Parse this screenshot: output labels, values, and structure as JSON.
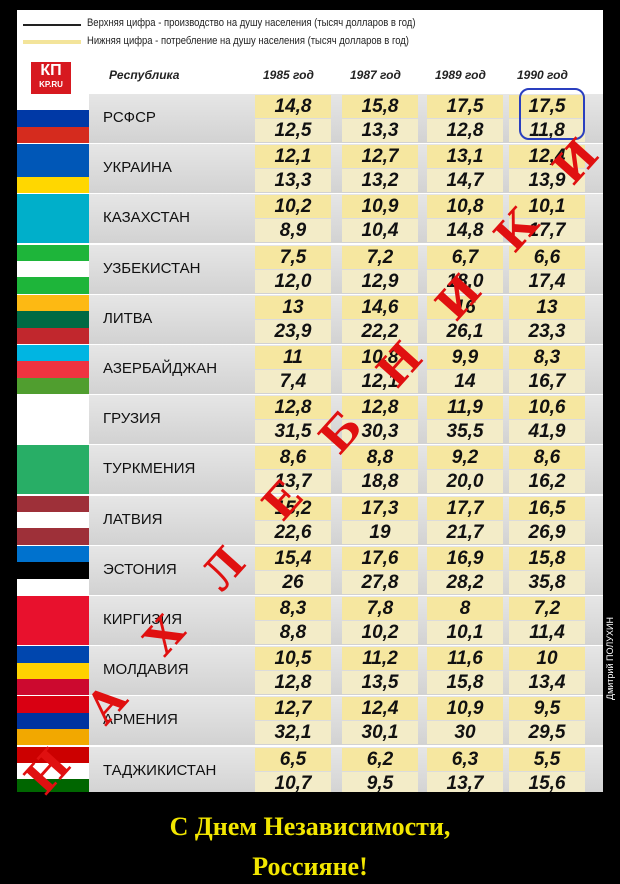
{
  "legend": [
    "Верхняя цифра - производство на душу населения (тысяч долларов в год)",
    "Нижняя цифра - потребление на душу населения (тысяч долларов в год)"
  ],
  "logo": {
    "brand": "КП",
    "site": "KP.RU"
  },
  "table": {
    "header": [
      "Республика",
      "1985 год",
      "1987 год",
      "1989 год",
      "1990 год"
    ],
    "rows": [
      {
        "name": "РСФСР",
        "production": [
          "14,8",
          "15,8",
          "17,5",
          "17,5"
        ],
        "consumption": [
          "12,5",
          "13,3",
          "12,8",
          "11,8"
        ]
      },
      {
        "name": "УКРАИНА",
        "production": [
          "12,1",
          "12,7",
          "13,1",
          "12,4"
        ],
        "consumption": [
          "13,3",
          "13,2",
          "14,7",
          "13,9"
        ]
      },
      {
        "name": "КАЗАХСТАН",
        "production": [
          "10,2",
          "10,9",
          "10,8",
          "10,1"
        ],
        "consumption": [
          "8,9",
          "10,4",
          "14,8",
          "17,7"
        ]
      },
      {
        "name": "УЗБЕКИСТАН",
        "production": [
          "7,5",
          "7,2",
          "6,7",
          "6,6"
        ],
        "consumption": [
          "12,0",
          "12,9",
          "18,0",
          "17,4"
        ]
      },
      {
        "name": "ЛИТВА",
        "production": [
          "13",
          "14,6",
          "16",
          "13"
        ],
        "consumption": [
          "23,9",
          "22,2",
          "26,1",
          "23,3"
        ]
      },
      {
        "name": "АЗЕРБАЙДЖАН",
        "production": [
          "11",
          "10,8",
          "9,9",
          "8,3"
        ],
        "consumption": [
          "7,4",
          "12,1",
          "14",
          "16,7"
        ]
      },
      {
        "name": "ГРУЗИЯ",
        "production": [
          "12,8",
          "12,8",
          "11,9",
          "10,6"
        ],
        "consumption": [
          "31,5",
          "30,3",
          "35,5",
          "41,9"
        ]
      },
      {
        "name": "ТУРКМЕНИЯ",
        "production": [
          "8,6",
          "8,8",
          "9,2",
          "8,6"
        ],
        "consumption": [
          "13,7",
          "18,8",
          "20,0",
          "16,2"
        ]
      },
      {
        "name": "ЛАТВИЯ",
        "production": [
          "15,2",
          "17,3",
          "17,7",
          "16,5"
        ],
        "consumption": [
          "22,6",
          "19",
          "21,7",
          "26,9"
        ]
      },
      {
        "name": "ЭСТОНИЯ",
        "production": [
          "15,4",
          "17,6",
          "16,9",
          "15,8"
        ],
        "consumption": [
          "26",
          "27,8",
          "28,2",
          "35,8"
        ]
      },
      {
        "name": "КИРГИЗИЯ",
        "production": [
          "8,3",
          "7,8",
          "8",
          "7,2"
        ],
        "consumption": [
          "8,8",
          "10,2",
          "10,1",
          "11,4"
        ]
      },
      {
        "name": "МОЛДАВИЯ",
        "production": [
          "10,5",
          "11,2",
          "11,6",
          "10"
        ],
        "consumption": [
          "12,8",
          "13,5",
          "15,8",
          "13,4"
        ]
      },
      {
        "name": "АРМЕНИЯ",
        "production": [
          "12,7",
          "12,4",
          "10,9",
          "9,5"
        ],
        "consumption": [
          "32,1",
          "30,1",
          "30",
          "29,5"
        ]
      },
      {
        "name": "ТАДЖИКИСТАН",
        "production": [
          "6,5",
          "6,2",
          "6,3",
          "5,5"
        ],
        "consumption": [
          "10,7",
          "9,5",
          "13,7",
          "15,6"
        ]
      }
    ]
  },
  "credit": "Дмитрий ПОЛУХИН",
  "watermark": [
    "Н",
    "А",
    "Х",
    "Л",
    "Е",
    "Б",
    "Н",
    "И",
    "К",
    "И"
  ],
  "caption": [
    "С Днем Независимости,",
    "Россияне!"
  ]
}
